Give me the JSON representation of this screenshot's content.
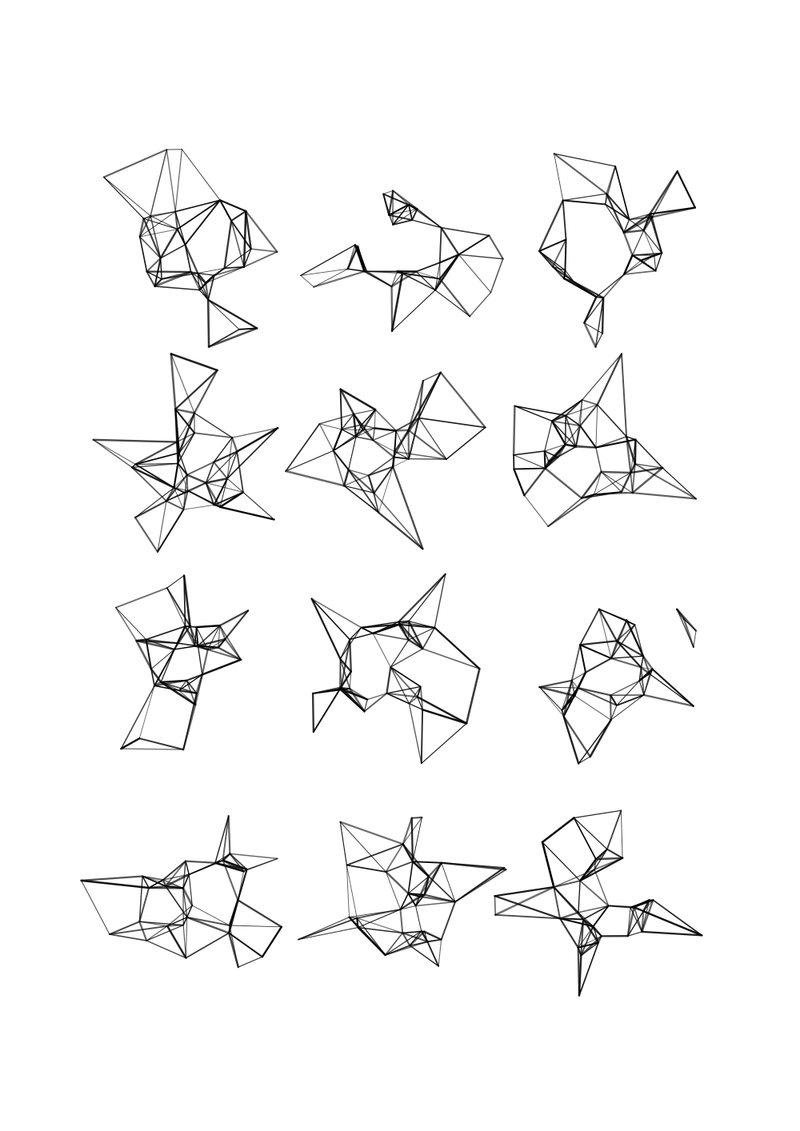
{
  "artwork": {
    "background_color": "#ffffff",
    "ink_color": "#000000",
    "grid": {
      "rows": 4,
      "columns": 3
    },
    "figures": [
      {
        "id": 1,
        "row": 1,
        "column": 1
      },
      {
        "id": 2,
        "row": 1,
        "column": 2
      },
      {
        "id": 3,
        "row": 1,
        "column": 3
      },
      {
        "id": 4,
        "row": 2,
        "column": 1
      },
      {
        "id": 5,
        "row": 2,
        "column": 2
      },
      {
        "id": 6,
        "row": 2,
        "column": 3
      },
      {
        "id": 7,
        "row": 3,
        "column": 1
      },
      {
        "id": 8,
        "row": 3,
        "column": 2
      },
      {
        "id": 9,
        "row": 3,
        "column": 3
      },
      {
        "id": 10,
        "row": 4,
        "column": 1
      },
      {
        "id": 11,
        "row": 4,
        "column": 2
      },
      {
        "id": 12,
        "row": 4,
        "column": 3
      }
    ]
  }
}
